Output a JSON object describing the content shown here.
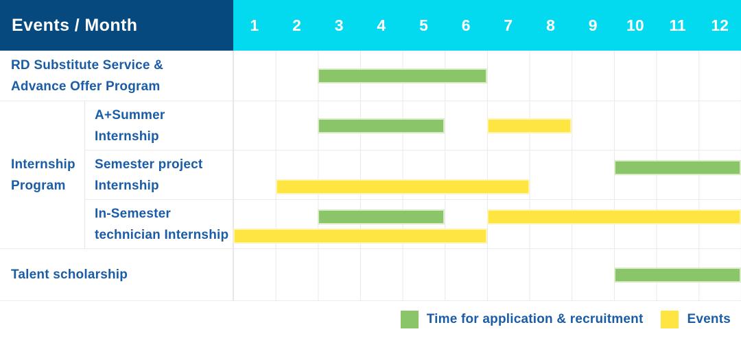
{
  "colors": {
    "header_bg": "#05497E",
    "months_bg": "#04DAEF",
    "label_text": "#1B5CA6",
    "green": "#8BC56A",
    "yellow": "#FFE542"
  },
  "header": {
    "label": "Events / Month",
    "months": [
      "1",
      "2",
      "3",
      "4",
      "5",
      "6",
      "7",
      "8",
      "9",
      "10",
      "11",
      "12"
    ]
  },
  "group": {
    "label_lines": [
      "Internship",
      "Program"
    ],
    "row_start": 2,
    "row_end": 4
  },
  "rows": [
    {
      "label_lines": [
        "RD Substitute Service &",
        "Advance Offer Program"
      ],
      "type": "full",
      "bars": [
        {
          "color": "green",
          "start": 3,
          "end": 6,
          "lane": "center"
        }
      ]
    },
    {
      "label_lines": [
        "A+Summer",
        "Internship"
      ],
      "type": "sub",
      "bars": [
        {
          "color": "green",
          "start": 3,
          "end": 5,
          "lane": "center"
        },
        {
          "color": "yellow",
          "start": 7,
          "end": 8,
          "lane": "center"
        }
      ]
    },
    {
      "label_lines": [
        "Semester project",
        "Internship"
      ],
      "type": "sub",
      "bars": [
        {
          "color": "green",
          "start": 10,
          "end": 12,
          "lane": "top"
        },
        {
          "color": "yellow",
          "start": 2,
          "end": 7,
          "lane": "bottom"
        }
      ]
    },
    {
      "label_lines": [
        "In-Semester",
        "technician Internship"
      ],
      "type": "sub",
      "bars": [
        {
          "color": "green",
          "start": 3,
          "end": 5,
          "lane": "top"
        },
        {
          "color": "yellow",
          "start": 7,
          "end": 12,
          "lane": "top"
        },
        {
          "color": "yellow",
          "start": 1,
          "end": 6,
          "lane": "bottom"
        }
      ]
    },
    {
      "label_lines": [
        "Talent scholarship"
      ],
      "type": "full",
      "bars": [
        {
          "color": "green",
          "start": 10,
          "end": 12,
          "lane": "center"
        }
      ]
    }
  ],
  "legend": [
    {
      "label": "Time for application & recruitment",
      "color": "green"
    },
    {
      "label": "Events",
      "color": "yellow"
    }
  ],
  "chart_data": {
    "type": "bar",
    "subtype": "gantt",
    "title": "Events / Month",
    "x_axis": {
      "label": "Month",
      "ticks": [
        1,
        2,
        3,
        4,
        5,
        6,
        7,
        8,
        9,
        10,
        11,
        12
      ],
      "range": [
        1,
        12
      ]
    },
    "grid": true,
    "legend_position": "bottom-right",
    "series_colors": {
      "Time for application & recruitment": "#8BC56A",
      "Events": "#FFE542"
    },
    "rows": [
      {
        "name": "RD Substitute Service & Advance Offer Program",
        "group": null,
        "spans": [
          {
            "series": "Time for application & recruitment",
            "start_month": 3,
            "end_month": 6
          }
        ]
      },
      {
        "name": "A+Summer Internship",
        "group": "Internship Program",
        "spans": [
          {
            "series": "Time for application & recruitment",
            "start_month": 3,
            "end_month": 5
          },
          {
            "series": "Events",
            "start_month": 7,
            "end_month": 8
          }
        ]
      },
      {
        "name": "Semester project Internship",
        "group": "Internship Program",
        "spans": [
          {
            "series": "Time for application & recruitment",
            "start_month": 10,
            "end_month": 12
          },
          {
            "series": "Events",
            "start_month": 2,
            "end_month": 7
          }
        ]
      },
      {
        "name": "In-Semester technician Internship",
        "group": "Internship Program",
        "spans": [
          {
            "series": "Time for application & recruitment",
            "start_month": 3,
            "end_month": 5
          },
          {
            "series": "Events",
            "start_month": 7,
            "end_month": 12
          },
          {
            "series": "Events",
            "start_month": 1,
            "end_month": 6
          }
        ]
      },
      {
        "name": "Talent scholarship",
        "group": null,
        "spans": [
          {
            "series": "Time for application & recruitment",
            "start_month": 10,
            "end_month": 12
          }
        ]
      }
    ]
  }
}
